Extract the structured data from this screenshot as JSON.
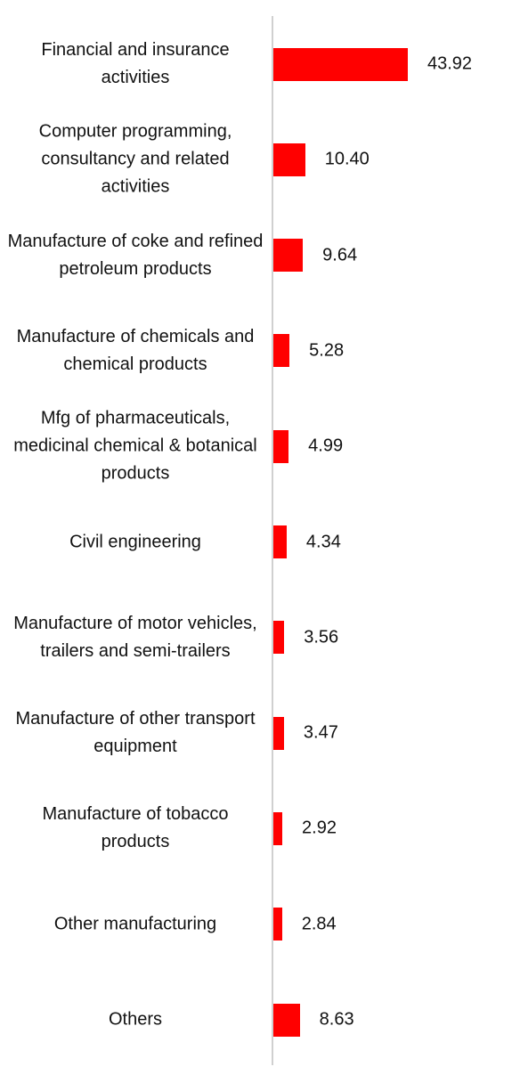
{
  "chart_data": {
    "type": "bar",
    "orientation": "horizontal",
    "color": "#ff0000",
    "categories": [
      "Financial and insurance activities",
      "Computer programming, consultancy and related activities",
      "Manufacture of coke and refined petroleum products",
      "Manufacture of chemicals and chemical products",
      "Mfg of pharmaceuticals, medicinal chemical & botanical products",
      "Civil engineering",
      "Manufacture of motor vehicles, trailers and semi-trailers",
      "Manufacture of other transport equipment",
      "Manufacture of tobacco products",
      "Other manufacturing",
      "Others"
    ],
    "values": [
      43.92,
      10.4,
      9.64,
      5.28,
      4.99,
      4.34,
      3.56,
      3.47,
      2.92,
      2.84,
      8.63
    ],
    "value_labels": [
      "43.92",
      "10.40",
      "9.64",
      "5.28",
      "4.99",
      "4.34",
      "3.56",
      "3.47",
      "2.92",
      "2.84",
      "8.63"
    ]
  }
}
